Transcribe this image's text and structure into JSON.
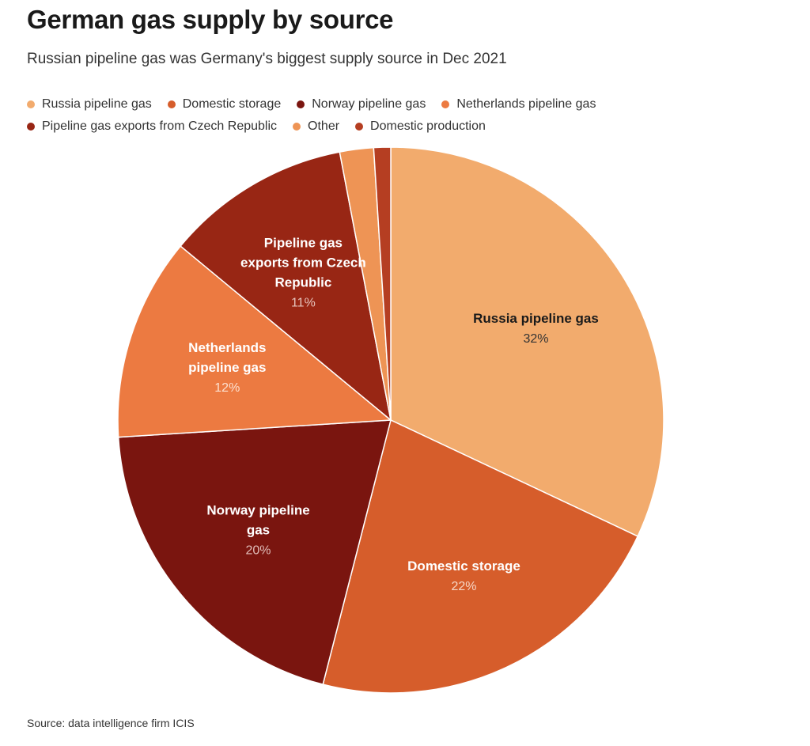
{
  "header": {
    "title": "German gas supply by source",
    "subtitle": "Russian pipeline gas was Germany's biggest supply source in Dec 2021"
  },
  "legend": {
    "rows": [
      [
        {
          "label": "Russia pipeline gas",
          "color": "#f2ab6d"
        },
        {
          "label": "Domestic storage",
          "color": "#d65d2b"
        },
        {
          "label": "Norway pipeline gas",
          "color": "#7a150f"
        },
        {
          "label": "Netherlands pipeline gas",
          "color": "#ec7a41"
        }
      ],
      [
        {
          "label": "Pipeline gas exports from Czech Republic",
          "color": "#982614"
        },
        {
          "label": "Other",
          "color": "#ee9455"
        },
        {
          "label": "Domestic production",
          "color": "#b53e22"
        }
      ]
    ]
  },
  "chart_data": {
    "type": "pie",
    "title": "German gas supply by source",
    "subtitle": "Russian pipeline gas was Germany's biggest supply source in Dec 2021",
    "legend_position": "top",
    "slices": [
      {
        "name": "Russia pipeline gas",
        "value": 32,
        "value_label": "32%",
        "label_lines": [
          "Russia pipeline gas"
        ],
        "color": "#f2ab6d",
        "label_color": "#1a1a1a",
        "pct_color": "#333333"
      },
      {
        "name": "Domestic storage",
        "value": 22,
        "value_label": "22%",
        "label_lines": [
          "Domestic storage"
        ],
        "color": "#d65d2b",
        "label_color": "#ffffff",
        "pct_color": "#f6d6c6"
      },
      {
        "name": "Norway pipeline gas",
        "value": 20,
        "value_label": "20%",
        "label_lines": [
          "Norway pipeline",
          "gas"
        ],
        "color": "#7a150f",
        "label_color": "#ffffff",
        "pct_color": "#e0bcb8"
      },
      {
        "name": "Netherlands pipeline gas",
        "value": 12,
        "value_label": "12%",
        "label_lines": [
          "Netherlands",
          "pipeline gas"
        ],
        "color": "#ec7a41",
        "label_color": "#ffffff",
        "pct_color": "#fde0cf"
      },
      {
        "name": "Pipeline gas exports from Czech Republic",
        "value": 11,
        "value_label": "11%",
        "label_lines": [
          "Pipeline gas",
          "exports from Czech",
          "Republic"
        ],
        "color": "#982614",
        "label_color": "#ffffff",
        "pct_color": "#e6c4bc"
      },
      {
        "name": "Other",
        "value": 2,
        "value_label": "",
        "label_lines": [],
        "color": "#ee9455",
        "label_color": "#ffffff",
        "pct_color": "#ffffff"
      },
      {
        "name": "Domestic production",
        "value": 1,
        "value_label": "",
        "label_lines": [],
        "color": "#b53e22",
        "label_color": "#ffffff",
        "pct_color": "#ffffff"
      }
    ]
  },
  "footer": {
    "source": "Source: data intelligence firm ICIS"
  }
}
